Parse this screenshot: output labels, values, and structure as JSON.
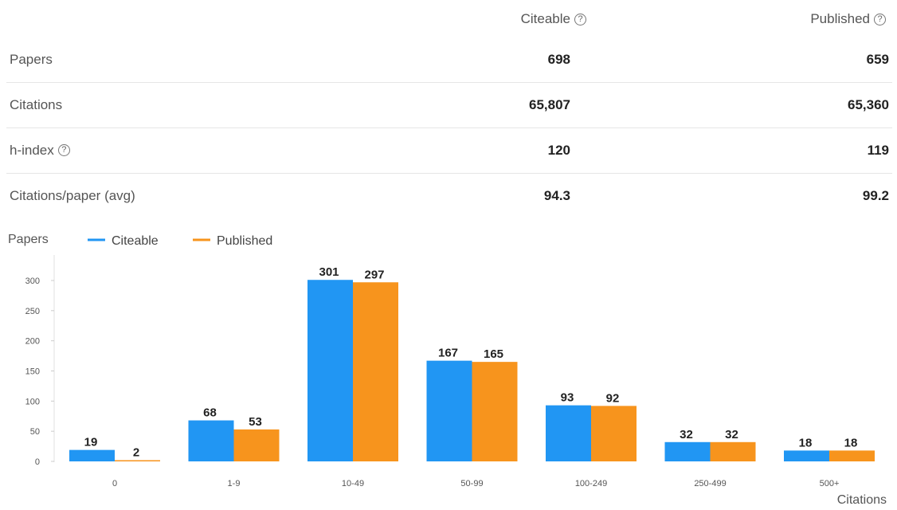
{
  "stats": {
    "header_citeable": "Citeable",
    "header_published": "Published",
    "help_glyph": "?",
    "rows": [
      {
        "label": "Papers",
        "citeable": "698",
        "published": "659"
      },
      {
        "label": "Citations",
        "citeable": "65,807",
        "published": "65,360"
      },
      {
        "label": "h-index",
        "citeable": "120",
        "published": "119"
      },
      {
        "label": "Citations/paper (avg)",
        "citeable": "94.3",
        "published": "99.2"
      }
    ]
  },
  "chart_data": {
    "type": "bar",
    "ylabel": "Papers",
    "xlabel": "Citations",
    "categories": [
      "0",
      "1-9",
      "10-49",
      "50-99",
      "100-249",
      "250-499",
      "500+"
    ],
    "series": [
      {
        "name": "Citeable",
        "color": "#2196f3",
        "values": [
          19,
          68,
          301,
          167,
          93,
          32,
          18
        ]
      },
      {
        "name": "Published",
        "color": "#f7941d",
        "values": [
          2,
          53,
          297,
          165,
          92,
          32,
          18
        ]
      }
    ],
    "ylim": [
      0,
      330
    ],
    "yticks": [
      "0",
      "50",
      "100",
      "150",
      "200",
      "250",
      "300"
    ],
    "legend_position": "top-left",
    "grid": false
  }
}
